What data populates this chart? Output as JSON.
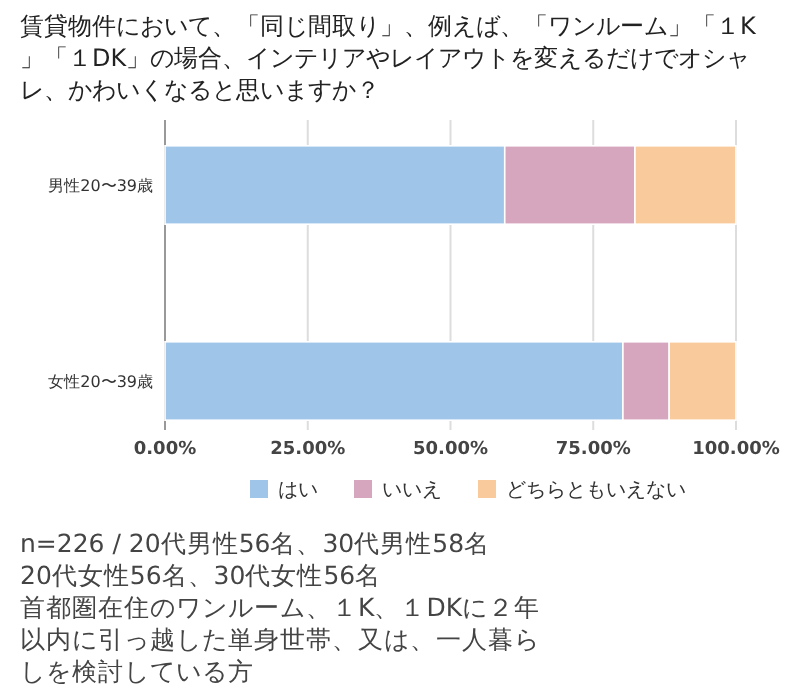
{
  "chart_data": {
    "type": "bar",
    "orientation": "horizontal",
    "stacked": true,
    "title": "賃貸物件において、「同じ間取り」、例えば、「ワンルーム」「１K」「１DK」の場合、インテリアやレイアウトを変えるだけでオシャレ、かわいくなると思いますか？",
    "categories": [
      "男性20〜39歳",
      "女性20〜39歳"
    ],
    "series": [
      {
        "name": "はい",
        "color": "#9fc5e8",
        "values": [
          59.5,
          80.2
        ]
      },
      {
        "name": "いいえ",
        "color": "#d5a6bd",
        "values": [
          22.8,
          8.1
        ]
      },
      {
        "name": "どちらともいえない",
        "color": "#f9cb9c",
        "values": [
          17.7,
          11.7
        ]
      }
    ],
    "xlim": [
      0,
      100
    ],
    "xticks": [
      {
        "value": 0,
        "label": "0.00%"
      },
      {
        "value": 25,
        "label": "25.00%"
      },
      {
        "value": 50,
        "label": "50.00%"
      },
      {
        "value": 75,
        "label": "75.00%"
      },
      {
        "value": 100,
        "label": "100.00%"
      }
    ],
    "grid": "x",
    "legend": "bottom",
    "annotations": [
      "n=226 / 20代男性56名、30代男性58名",
      "20代女性56名、30代女性56名",
      "首都圏在住のワンルーム、１K、１DKに２年以内に引っ越した単身世帯、又は、一人暮らしを検討している方"
    ]
  }
}
